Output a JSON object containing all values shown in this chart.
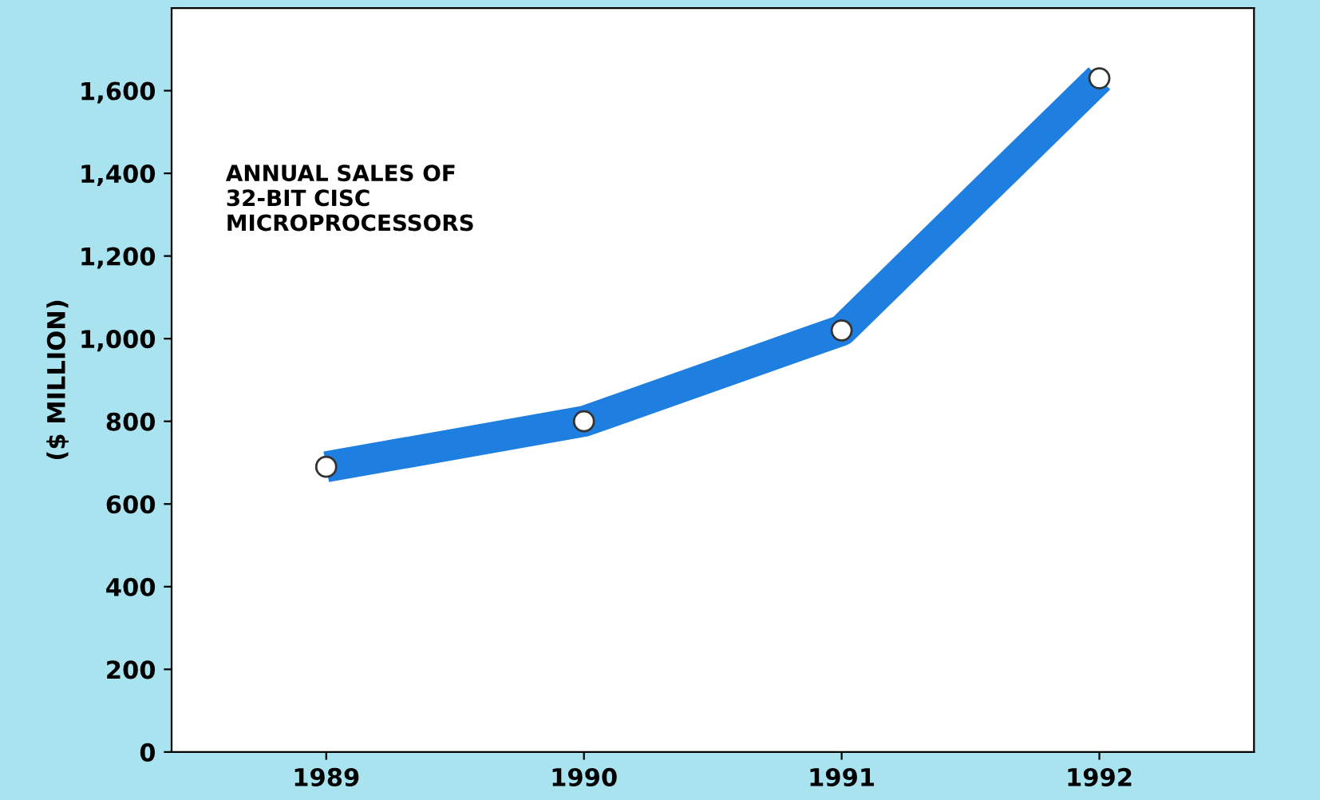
{
  "chart_data": {
    "type": "line",
    "ylabel": "($ MILLION)",
    "categories": [
      "1989",
      "1990",
      "1991",
      "1992"
    ],
    "series": [
      {
        "color": "#1e7fe0",
        "values": [
          690,
          800,
          1020,
          1630
        ]
      }
    ],
    "ylim": [
      0,
      1800
    ],
    "yticks": [
      0,
      200,
      400,
      600,
      800,
      {
        "value": 1000,
        "label": "1,000"
      },
      {
        "value": 1200,
        "label": "1,200"
      },
      {
        "value": 1400,
        "label": "1,400"
      },
      {
        "value": 1600,
        "label": "1,600"
      }
    ],
    "annotations": [
      "ANNUAL SALES OF\n32-BIT CISC\nMICROPROCESSORS"
    ],
    "marker": "circle",
    "grid": false,
    "legend": false
  }
}
